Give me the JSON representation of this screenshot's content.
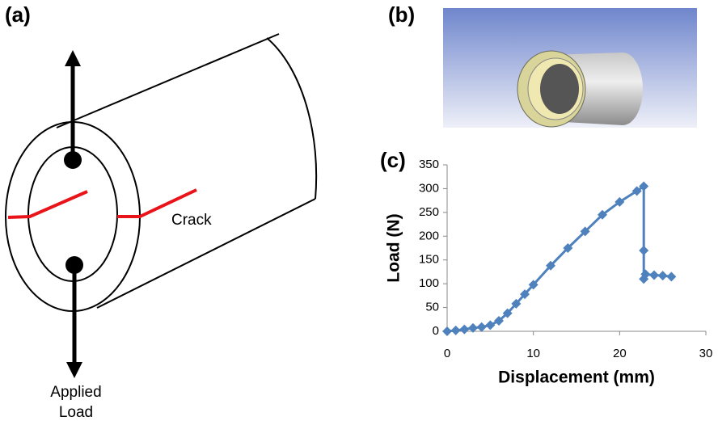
{
  "panels": {
    "a": {
      "label": "(a)",
      "crack": "Crack",
      "load_lines": [
        "Applied",
        "Load"
      ]
    },
    "b": {
      "label": "(b)"
    },
    "c": {
      "label": "(c)"
    }
  },
  "chart_data": {
    "type": "line",
    "xlabel": "Displacement (mm)",
    "ylabel": "Load (N)",
    "color": "#4f81bd",
    "x": [
      0,
      1,
      2,
      3,
      4,
      5,
      6,
      7,
      8,
      9,
      10,
      12,
      14,
      16,
      18,
      20,
      22,
      22.8,
      22.8,
      22.8,
      23,
      24,
      25,
      26
    ],
    "values": [
      0,
      2,
      4,
      7,
      9,
      13,
      22,
      38,
      58,
      78,
      98,
      138,
      175,
      210,
      245,
      272,
      295,
      305,
      170,
      110,
      120,
      118,
      117,
      115
    ],
    "xlim": [
      0,
      30
    ],
    "ylim": [
      0,
      350
    ],
    "xticks": [
      0,
      10,
      20,
      30
    ],
    "yticks": [
      0,
      50,
      100,
      150,
      200,
      250,
      300,
      350
    ]
  }
}
